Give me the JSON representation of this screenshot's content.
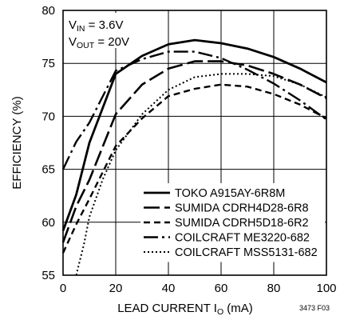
{
  "chart_data": {
    "type": "line",
    "xlabel": "LEAD CURRENT I",
    "xlabel_sub": "O",
    "xlabel_unit": " (mA)",
    "ylabel": "EFFICIENCY (%)",
    "xlim": [
      0,
      100
    ],
    "ylim": [
      55,
      80
    ],
    "x_ticks": [
      0,
      20,
      40,
      60,
      80,
      100
    ],
    "y_ticks": [
      55,
      60,
      65,
      70,
      75,
      80
    ],
    "grid": true,
    "legend_position": "bottom-right",
    "annotations": {
      "vin_main": "V",
      "vin_sub": "IN",
      "vin_value": " = 3.6V",
      "vout_main": "V",
      "vout_sub": "OUT",
      "vout_value": " = 20V"
    },
    "figure_id": "3473 F03",
    "series": [
      {
        "name": "TOKO A915AY-6R8M",
        "dash": "solid",
        "x": [
          0,
          5,
          10,
          20,
          30,
          40,
          50,
          60,
          70,
          80,
          90,
          100
        ],
        "y": [
          59.2,
          62.6,
          67.5,
          74.0,
          75.7,
          76.8,
          77.2,
          76.9,
          76.4,
          75.6,
          74.5,
          73.2
        ]
      },
      {
        "name": "SUMIDA CDRH4D28-6R8",
        "dash": "longdash",
        "x": [
          0,
          5,
          10,
          20,
          30,
          40,
          50,
          60,
          70,
          80,
          90,
          100
        ],
        "y": [
          58.1,
          61.5,
          64.0,
          70.2,
          73.0,
          74.5,
          75.2,
          75.2,
          74.8,
          74.0,
          73.0,
          71.7
        ]
      },
      {
        "name": "SUMIDA CDRH5D18-6R2",
        "dash": "dashed",
        "x": [
          0,
          5,
          10,
          20,
          30,
          40,
          50,
          60,
          70,
          80,
          90,
          100
        ],
        "y": [
          57.1,
          59.8,
          62.2,
          67.2,
          69.8,
          71.9,
          72.6,
          73.0,
          72.8,
          72.1,
          71.1,
          69.8
        ]
      },
      {
        "name": "COILCRAFT ME3220-682",
        "dash": "dashdot",
        "x": [
          0,
          5,
          10,
          20,
          30,
          40,
          50,
          60,
          70,
          80,
          90,
          100
        ],
        "y": [
          65.0,
          67.6,
          69.4,
          74.3,
          75.4,
          76.1,
          76.1,
          75.5,
          74.4,
          73.1,
          71.5,
          69.7
        ]
      },
      {
        "name": "COILCRAFT MSS5131-682",
        "dash": "dotted",
        "x": [
          5,
          8,
          10,
          15,
          20,
          30,
          40,
          50,
          60,
          70,
          80,
          90,
          100
        ],
        "y": [
          55.0,
          58.0,
          60.5,
          64.0,
          66.8,
          70.2,
          72.5,
          73.7,
          74.0,
          74.0,
          73.8,
          73.0,
          71.8
        ]
      }
    ]
  }
}
